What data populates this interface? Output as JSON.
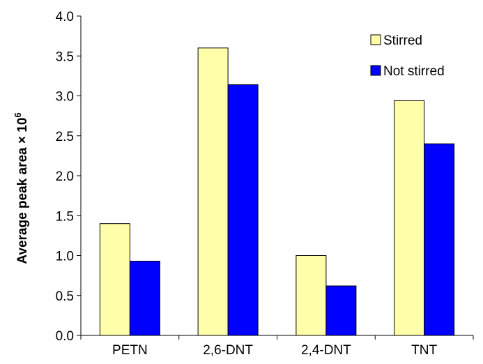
{
  "chart_data": {
    "type": "bar",
    "title": "",
    "xlabel": "",
    "ylabel": "Average peak area × 10",
    "ylabel_superscript": "6",
    "categories": [
      "PETN",
      "2,6-DNT",
      "2,4-DNT",
      "TNT"
    ],
    "series": [
      {
        "name": "Stirred",
        "color": "#FFFFAA",
        "values": [
          1.4,
          3.6,
          1.0,
          2.94
        ]
      },
      {
        "name": "Not stirred",
        "color": "#0000FF",
        "values": [
          0.93,
          3.14,
          0.62,
          2.4
        ]
      }
    ],
    "ylim": [
      0,
      4.0
    ],
    "yticks": [
      "0.0",
      "0.5",
      "1.0",
      "1.5",
      "2.0",
      "2.5",
      "3.0",
      "3.5",
      "4.0"
    ],
    "grid": false,
    "legend_position": "top-right"
  }
}
